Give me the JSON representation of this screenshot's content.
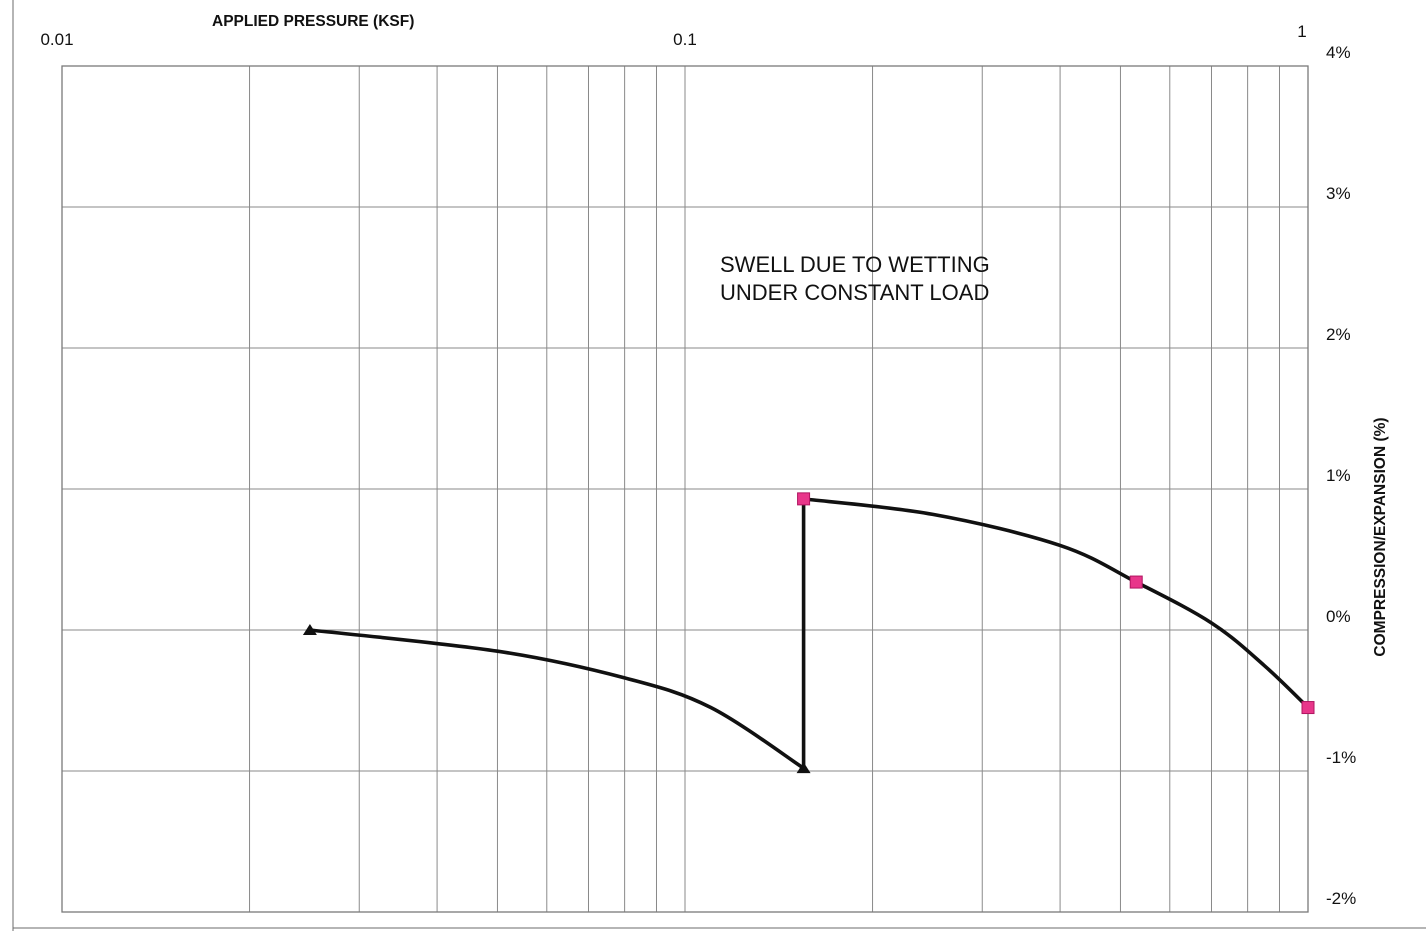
{
  "chart_data": {
    "type": "line",
    "title": "",
    "xlabel": "APPLIED PRESSURE (KSF)",
    "ylabel": "COMPRESSION/EXPANSION (%)",
    "x_scale": "log",
    "xlim": [
      0.01,
      1
    ],
    "ylim": [
      -2,
      4
    ],
    "x_tick_labels": [
      "0.01",
      "0.1",
      "1"
    ],
    "x_tick_values": [
      0.01,
      0.1,
      1
    ],
    "y_tick_labels": [
      "4%",
      "3%",
      "2%",
      "1%",
      "0%",
      "-1%",
      "-2%"
    ],
    "y_tick_values": [
      4,
      3,
      2,
      1,
      0,
      -1,
      -2
    ],
    "x_axis_position": "top",
    "y_axis_position": "right",
    "grid": true,
    "series": [
      {
        "marker": "triangle",
        "color": "#111111",
        "points": [
          [
            0.025,
            0.0
          ],
          [
            0.155,
            -0.98
          ]
        ],
        "curve": [
          [
            0.025,
            0.0
          ],
          [
            0.05,
            -0.15
          ],
          [
            0.08,
            -0.34
          ],
          [
            0.11,
            -0.55
          ],
          [
            0.155,
            -0.98
          ]
        ]
      },
      {
        "marker": "none",
        "color": "#111111",
        "points": [
          [
            0.155,
            -0.98
          ],
          [
            0.155,
            0.93
          ]
        ],
        "curve": [
          [
            0.155,
            -0.98
          ],
          [
            0.155,
            0.93
          ]
        ]
      },
      {
        "marker": "square",
        "color": "#e8368a",
        "points": [
          [
            0.155,
            0.93
          ],
          [
            0.53,
            0.34
          ],
          [
            1.0,
            -0.55
          ]
        ],
        "curve": [
          [
            0.155,
            0.93
          ],
          [
            0.25,
            0.82
          ],
          [
            0.4,
            0.6
          ],
          [
            0.53,
            0.34
          ],
          [
            0.7,
            0.05
          ],
          [
            0.85,
            -0.25
          ],
          [
            1.0,
            -0.55
          ]
        ]
      }
    ],
    "annotations": [
      "SWELL DUE TO WETTING",
      "UNDER CONSTANT LOAD"
    ]
  }
}
